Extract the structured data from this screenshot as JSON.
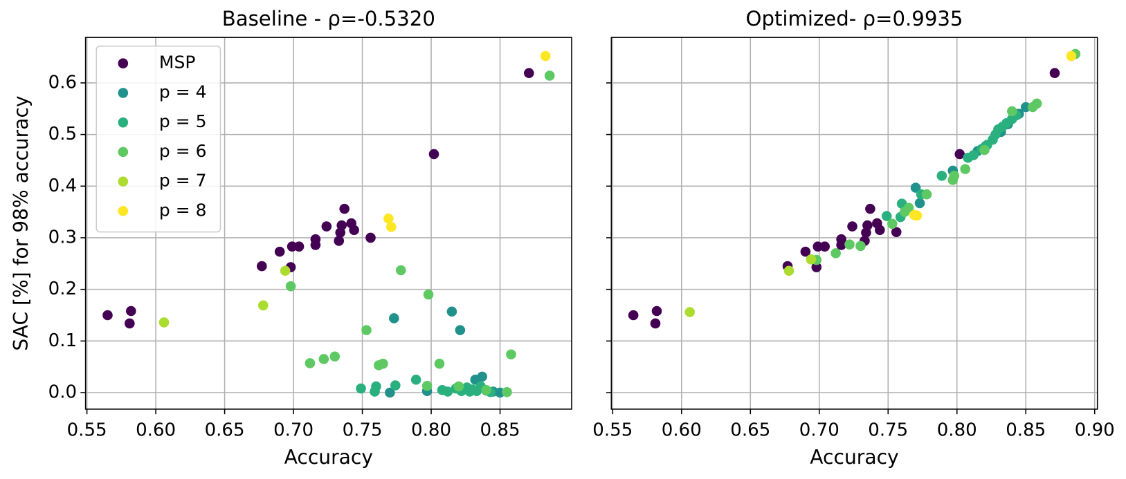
{
  "chart_data": [
    {
      "type": "scatter",
      "title": "Baseline - ρ=-0.5320",
      "xlabel": "Accuracy",
      "ylabel": "SAC [%] for 98% accuracy",
      "xlim": [
        0.549,
        0.902
      ],
      "ylim": [
        -0.032,
        0.688
      ],
      "xticks": [
        0.55,
        {
          "value": 0.6,
          "label": "0.60"
        },
        0.65,
        {
          "value": 0.7,
          "label": "0.70"
        },
        0.75,
        {
          "value": 0.8,
          "label": "0.80"
        },
        0.85
      ],
      "yticks": [
        {
          "value": 0,
          "label": "0.0"
        },
        0.1,
        0.2,
        0.3,
        0.4,
        0.5,
        0.6
      ],
      "grid": true,
      "legend": "upper left",
      "series": [
        {
          "name": "MSP",
          "color": "#440154",
          "x": [
            0.565,
            0.582,
            0.581,
            0.677,
            0.69,
            0.698,
            0.699,
            0.704,
            0.716,
            0.716,
            0.724,
            0.733,
            0.734,
            0.735,
            0.737,
            0.742,
            0.744,
            0.756,
            0.802,
            0.871
          ],
          "values": [
            0.15,
            0.158,
            0.134,
            0.245,
            0.273,
            0.243,
            0.283,
            0.283,
            0.297,
            0.286,
            0.322,
            0.294,
            0.31,
            0.324,
            0.356,
            0.328,
            0.315,
            0.3,
            0.462,
            0.619
          ]
        },
        {
          "name": "p = 4",
          "color": "#21918c",
          "x": [
            0.77,
            0.773,
            0.797,
            0.815,
            0.821,
            0.832,
            0.837,
            0.845,
            0.85
          ],
          "values": [
            0.0,
            0.144,
            0.003,
            0.157,
            0.121,
            0.025,
            0.031,
            0.002,
            0.0
          ]
        },
        {
          "name": "p = 5",
          "color": "#2ab07f",
          "x": [
            0.749,
            0.759,
            0.76,
            0.774,
            0.789,
            0.808,
            0.812,
            0.818,
            0.822,
            0.826,
            0.828,
            0.83,
            0.833,
            0.836,
            0.84,
            0.843
          ],
          "values": [
            0.008,
            0.002,
            0.012,
            0.014,
            0.025,
            0.005,
            0.002,
            0.008,
            0.003,
            0.01,
            0.002,
            0.006,
            0.003,
            0.012,
            0.004,
            0.001
          ]
        },
        {
          "name": "p = 6",
          "color": "#5ec962",
          "x": [
            0.698,
            0.712,
            0.722,
            0.73,
            0.753,
            0.762,
            0.765,
            0.778,
            0.797,
            0.798,
            0.806,
            0.82,
            0.84,
            0.855,
            0.858,
            0.886
          ],
          "values": [
            0.206,
            0.057,
            0.065,
            0.07,
            0.121,
            0.053,
            0.056,
            0.237,
            0.013,
            0.19,
            0.056,
            0.012,
            0.005,
            0.001,
            0.074,
            0.614
          ]
        },
        {
          "name": "p = 7",
          "color": "#addc30",
          "x": [
            0.606,
            0.678,
            0.694
          ],
          "values": [
            0.136,
            0.169,
            0.236
          ]
        },
        {
          "name": "p = 8",
          "color": "#fde725",
          "x": [
            0.769,
            0.771,
            0.883
          ],
          "values": [
            0.337,
            0.321,
            0.652
          ]
        }
      ]
    },
    {
      "type": "scatter",
      "title": "Optimized- ρ=0.9935",
      "xlabel": "Accuracy",
      "xlim": [
        0.549,
        0.902
      ],
      "ylim": [
        -0.032,
        0.688
      ],
      "xticks": [
        0.55,
        {
          "value": 0.6,
          "label": "0.60"
        },
        0.65,
        {
          "value": 0.7,
          "label": "0.70"
        },
        0.75,
        {
          "value": 0.8,
          "label": "0.80"
        },
        0.85,
        {
          "value": 0.9,
          "label": "0.90"
        }
      ],
      "yticks": [
        0,
        0.1,
        0.2,
        0.3,
        0.4,
        0.5,
        0.6
      ],
      "show_ytick_labels": false,
      "grid": true,
      "series": [
        {
          "color": "#440154",
          "x": [
            0.565,
            0.582,
            0.581,
            0.677,
            0.69,
            0.698,
            0.699,
            0.704,
            0.716,
            0.716,
            0.724,
            0.733,
            0.734,
            0.735,
            0.737,
            0.742,
            0.744,
            0.756,
            0.802,
            0.871
          ],
          "values": [
            0.15,
            0.158,
            0.134,
            0.245,
            0.273,
            0.243,
            0.283,
            0.283,
            0.297,
            0.286,
            0.322,
            0.294,
            0.31,
            0.324,
            0.356,
            0.328,
            0.315,
            0.311,
            0.462,
            0.619
          ]
        },
        {
          "color": "#21918c",
          "x": [
            0.77,
            0.773,
            0.797,
            0.815,
            0.821,
            0.832,
            0.837,
            0.845,
            0.85
          ],
          "values": [
            0.397,
            0.367,
            0.43,
            0.468,
            0.478,
            0.505,
            0.52,
            0.54,
            0.553
          ]
        },
        {
          "color": "#2ab07f",
          "x": [
            0.749,
            0.759,
            0.76,
            0.774,
            0.789,
            0.808,
            0.812,
            0.818,
            0.822,
            0.826,
            0.828,
            0.83,
            0.833,
            0.836,
            0.84,
            0.843
          ],
          "values": [
            0.342,
            0.34,
            0.366,
            0.384,
            0.42,
            0.455,
            0.46,
            0.472,
            0.48,
            0.49,
            0.5,
            0.51,
            0.515,
            0.522,
            0.53,
            0.537
          ]
        },
        {
          "color": "#5ec962",
          "x": [
            0.698,
            0.712,
            0.722,
            0.73,
            0.753,
            0.762,
            0.765,
            0.778,
            0.797,
            0.798,
            0.806,
            0.82,
            0.84,
            0.855,
            0.858,
            0.886
          ],
          "values": [
            0.257,
            0.27,
            0.287,
            0.284,
            0.327,
            0.35,
            0.358,
            0.384,
            0.412,
            0.42,
            0.433,
            0.47,
            0.545,
            0.553,
            0.56,
            0.656
          ]
        },
        {
          "color": "#addc30",
          "x": [
            0.606,
            0.678,
            0.694
          ],
          "values": [
            0.156,
            0.236,
            0.258
          ]
        },
        {
          "color": "#fde725",
          "x": [
            0.769,
            0.771,
            0.883
          ],
          "values": [
            0.344,
            0.343,
            0.652
          ]
        }
      ]
    }
  ]
}
